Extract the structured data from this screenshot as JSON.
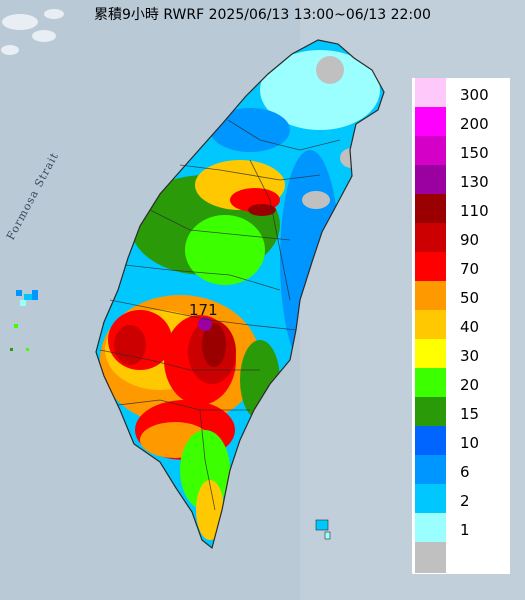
{
  "map": {
    "title": "累積9小時 RWRF 2025/06/13 13:00~06/13 22:00",
    "strait_label": "Formosa Strait",
    "max_value_label": "171",
    "colors": {
      "sea": "#b9c9d6",
      "land_outline": "#2b2b2b",
      "land_dry": "#c0c0c0"
    }
  },
  "legend": {
    "items": [
      {
        "label": "300",
        "color": "#ffc8fa"
      },
      {
        "label": "200",
        "color": "#ff00ff"
      },
      {
        "label": "150",
        "color": "#d400c8"
      },
      {
        "label": "130",
        "color": "#9b00a0"
      },
      {
        "label": "110",
        "color": "#9a0000"
      },
      {
        "label": "90",
        "color": "#cc0000"
      },
      {
        "label": "70",
        "color": "#ff0000"
      },
      {
        "label": "50",
        "color": "#ff9900"
      },
      {
        "label": "40",
        "color": "#ffc800"
      },
      {
        "label": "30",
        "color": "#ffff00"
      },
      {
        "label": "20",
        "color": "#3cff00"
      },
      {
        "label": "15",
        "color": "#2a9a08"
      },
      {
        "label": "10",
        "color": "#0064ff"
      },
      {
        "label": "6",
        "color": "#0096ff"
      },
      {
        "label": "2",
        "color": "#00c8ff"
      },
      {
        "label": "1",
        "color": "#9bffff"
      },
      {
        "label": "",
        "color": "#c0c0c0"
      }
    ]
  }
}
